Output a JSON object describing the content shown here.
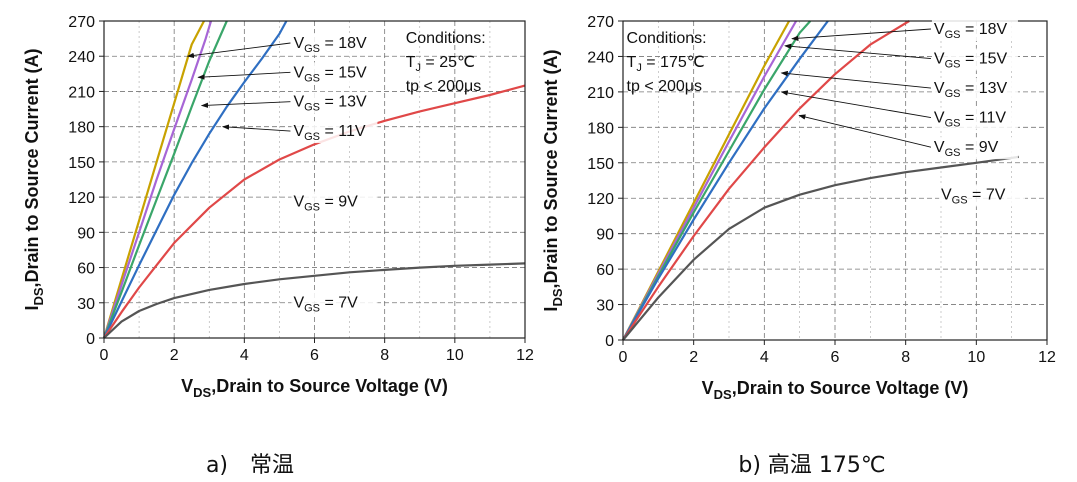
{
  "chart_data": [
    {
      "type": "line",
      "caption": "a)　常温",
      "xlabel": {
        "main": "V",
        "sub": "DS",
        "rest": ",Drain to Source Voltage (V)"
      },
      "ylabel": {
        "main": "I",
        "sub": "DS",
        "rest": ",Drain to Source Current (A)"
      },
      "xlim": [
        0,
        12
      ],
      "ylim": [
        0,
        270
      ],
      "xticks": [
        0,
        2,
        4,
        6,
        8,
        10,
        12
      ],
      "yticks": [
        0,
        30,
        60,
        90,
        120,
        150,
        180,
        210,
        240,
        270
      ],
      "grid": true,
      "conditions": [
        "Conditions:",
        "T_J = 25℃",
        "tp < 200μs"
      ],
      "series": [
        {
          "name": "V_GS = 18V",
          "color": "#c8a200",
          "x": [
            0,
            0.5,
            1,
            1.5,
            2,
            2.5,
            2.85
          ],
          "y": [
            0,
            50,
            100,
            150,
            200,
            250,
            270
          ]
        },
        {
          "name": "V_GS = 15V",
          "color": "#a766d6",
          "x": [
            0,
            0.5,
            1,
            1.5,
            2,
            2.5,
            2.9,
            3.05
          ],
          "y": [
            0,
            45,
            90,
            135,
            178,
            220,
            255,
            270
          ]
        },
        {
          "name": "V_GS = 13V",
          "color": "#3aa66a",
          "x": [
            0,
            0.5,
            1,
            1.5,
            2,
            2.5,
            3,
            3.5
          ],
          "y": [
            0,
            39,
            79,
            118,
            157,
            197,
            236,
            270
          ]
        },
        {
          "name": "V_GS = 11V",
          "color": "#2f6fc2",
          "x": [
            0,
            0.5,
            1,
            1.5,
            2,
            2.5,
            3,
            3.5,
            4,
            4.5,
            5,
            5.2
          ],
          "y": [
            0,
            31,
            62,
            92,
            122,
            149,
            174,
            197,
            218,
            238,
            259,
            270
          ]
        },
        {
          "name": "V_GS = 9V",
          "color": "#e04848",
          "x": [
            0,
            0.5,
            1,
            1.5,
            2,
            3,
            4,
            5,
            6,
            7,
            8,
            9,
            10,
            11,
            12
          ],
          "y": [
            0,
            22,
            43,
            62,
            81,
            111,
            135,
            152,
            165,
            176,
            185,
            193,
            200,
            207,
            215
          ]
        },
        {
          "name": "V_GS = 7V",
          "color": "#555555",
          "x": [
            0,
            0.5,
            1,
            1.5,
            2,
            3,
            4,
            5,
            6,
            7,
            8,
            9,
            10,
            11,
            12
          ],
          "y": [
            0,
            14,
            23,
            29,
            34,
            41,
            46,
            50,
            53,
            56,
            58,
            60,
            61.5,
            62.5,
            63.5
          ]
        }
      ],
      "labels": [
        {
          "text": "V_GS = 18V",
          "at": [
            5.4,
            247
          ],
          "arrow_to": [
            2.3,
            240
          ]
        },
        {
          "text": "V_GS = 15V",
          "at": [
            5.4,
            222
          ],
          "arrow_to": [
            2.6,
            222
          ]
        },
        {
          "text": "V_GS = 13V",
          "at": [
            5.4,
            197
          ],
          "arrow_to": [
            2.7,
            198
          ]
        },
        {
          "text": "V_GS = 11V",
          "at": [
            5.4,
            172
          ],
          "arrow_to": [
            3.3,
            180
          ]
        },
        {
          "text": "V_GS = 9V",
          "at": [
            5.4,
            112
          ],
          "arrow_to": null
        },
        {
          "text": "V_GS = 7V",
          "at": [
            5.4,
            26
          ],
          "arrow_to": null
        }
      ]
    },
    {
      "type": "line",
      "caption": "b) 高温 175℃",
      "xlabel": {
        "main": "V",
        "sub": "DS",
        "rest": ",Drain to Source Voltage (V)"
      },
      "ylabel": {
        "main": "I",
        "sub": "DS",
        "rest": ",Drain to Source Current (A)"
      },
      "xlim": [
        0,
        12
      ],
      "ylim": [
        0,
        270
      ],
      "xticks": [
        0,
        2,
        4,
        6,
        8,
        10,
        12
      ],
      "yticks": [
        0,
        30,
        60,
        90,
        120,
        150,
        180,
        210,
        240,
        270
      ],
      "grid": true,
      "conditions": [
        "Conditions:",
        "T_J = 175℃",
        "tp < 200μs"
      ],
      "series": [
        {
          "name": "V_GS = 18V",
          "color": "#c8a200",
          "x": [
            0,
            1,
            2,
            3,
            4,
            4.7
          ],
          "y": [
            0,
            58,
            116,
            174,
            232,
            270
          ]
        },
        {
          "name": "V_GS = 15V",
          "color": "#a766d6",
          "x": [
            0,
            1,
            2,
            3,
            4,
            4.9
          ],
          "y": [
            0,
            56,
            112,
            168,
            223,
            270
          ]
        },
        {
          "name": "V_GS = 13V",
          "color": "#3aa66a",
          "x": [
            0,
            1,
            2,
            3,
            4,
            5,
            5.3
          ],
          "y": [
            0,
            54,
            108,
            160,
            212,
            260,
            270
          ]
        },
        {
          "name": "V_GS = 11V",
          "color": "#2f6fc2",
          "x": [
            0,
            1,
            2,
            3,
            4,
            5,
            5.8
          ],
          "y": [
            0,
            52,
            102,
            150,
            196,
            238,
            270
          ]
        },
        {
          "name": "V_GS = 9V",
          "color": "#e04848",
          "x": [
            0,
            1,
            2,
            3,
            4,
            5,
            6,
            7,
            8.1
          ],
          "y": [
            0,
            45,
            88,
            128,
            163,
            196,
            225,
            250,
            270
          ]
        },
        {
          "name": "V_GS = 7V",
          "color": "#555555",
          "x": [
            0,
            1,
            2,
            3,
            4,
            5,
            6,
            7,
            8,
            9,
            10,
            11.2
          ],
          "y": [
            0,
            36,
            68,
            94,
            112,
            123,
            131,
            137,
            142,
            146,
            150,
            155
          ]
        }
      ],
      "labels": [
        {
          "text": "V_GS = 18V",
          "at": [
            8.8,
            259
          ],
          "arrow_to": [
            4.7,
            255
          ]
        },
        {
          "text": "V_GS = 15V",
          "at": [
            8.8,
            234
          ],
          "arrow_to": [
            4.5,
            249
          ]
        },
        {
          "text": "V_GS = 13V",
          "at": [
            8.8,
            209
          ],
          "arrow_to": [
            4.4,
            226
          ]
        },
        {
          "text": "V_GS = 11V",
          "at": [
            8.8,
            184
          ],
          "arrow_to": [
            4.4,
            210
          ]
        },
        {
          "text": "V_GS = 9V",
          "at": [
            8.8,
            159
          ],
          "arrow_to": [
            4.9,
            190
          ]
        },
        {
          "text": "V_GS = 7V",
          "at": [
            9.0,
            119
          ],
          "arrow_to": null
        }
      ]
    }
  ]
}
